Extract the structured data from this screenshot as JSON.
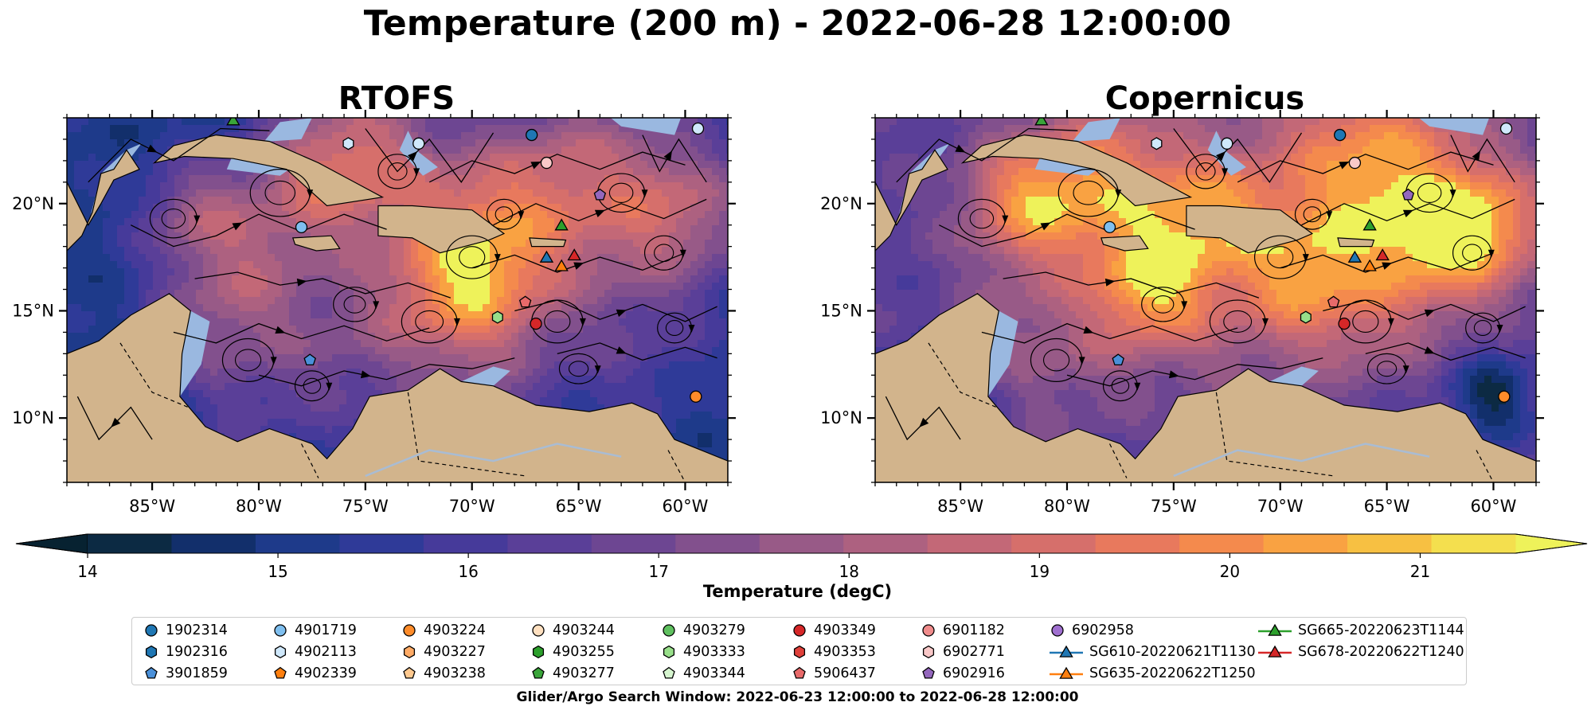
{
  "figure": {
    "suptitle": "Temperature (200 m) - 2022-06-28 12:00:00",
    "search_window": "Glider/Argo Search Window: 2022-06-23 12:00:00 to 2022-06-28 12:00:00"
  },
  "panels": [
    {
      "title": "RTOFS"
    },
    {
      "title": "Copernicus"
    }
  ],
  "map_extent": {
    "lon": [
      -89,
      -58
    ],
    "lat": [
      7,
      24
    ]
  },
  "axes": {
    "lon_ticks": [
      -85,
      -80,
      -75,
      -70,
      -65,
      -60
    ],
    "lon_labels": [
      "85°W",
      "80°W",
      "75°W",
      "70°W",
      "65°W",
      "60°W"
    ],
    "lat_ticks": [
      10,
      15,
      20
    ],
    "lat_labels": [
      "10°N",
      "15°N",
      "20°N"
    ]
  },
  "colorbar": {
    "label": "Temperature (degC)",
    "min": 14,
    "max": 21.5,
    "step": 0.5,
    "ticks": [
      14,
      15,
      16,
      17,
      18,
      19,
      20,
      21
    ],
    "tick_labels": [
      "14",
      "15",
      "16",
      "17",
      "18",
      "19",
      "20",
      "21"
    ],
    "extend": "both",
    "colors": [
      "#0c2a43",
      "#122f6b",
      "#1e3a8a",
      "#2f3a98",
      "#463a9a",
      "#5a3f98",
      "#6d4692",
      "#82508d",
      "#985a87",
      "#ad6180",
      "#c36877",
      "#d66f6b",
      "#e8795d",
      "#f48a4d",
      "#f9a242",
      "#f7c042",
      "#f4df4e"
    ],
    "under_color": "#072231",
    "over_color": "#eef25a"
  },
  "colors": {
    "land": "#d2b48c",
    "shelf": "#9ab8e0",
    "rivers": "#a9bcd3"
  },
  "legend": {
    "columns": [
      [
        {
          "label": "1902314",
          "marker": "circle",
          "color": "#1f77b4"
        },
        {
          "label": "1902316",
          "marker": "hexagon",
          "color": "#1f77b4"
        },
        {
          "label": "3901859",
          "marker": "pentagon",
          "color": "#4a90d9"
        }
      ],
      [
        {
          "label": "4901719",
          "marker": "circle",
          "color": "#7fbfef"
        },
        {
          "label": "4902113",
          "marker": "hexagon",
          "color": "#cfe8fb"
        },
        {
          "label": "4902339",
          "marker": "pentagon",
          "color": "#ff7f0e"
        }
      ],
      [
        {
          "label": "4903224",
          "marker": "circle",
          "color": "#ff8c2a"
        },
        {
          "label": "4903227",
          "marker": "hexagon",
          "color": "#ffab66"
        },
        {
          "label": "4903238",
          "marker": "pentagon",
          "color": "#ffc98f"
        }
      ],
      [
        {
          "label": "4903244",
          "marker": "circle",
          "color": "#ffe0c0"
        },
        {
          "label": "4903255",
          "marker": "hexagon",
          "color": "#2ca02c"
        },
        {
          "label": "4903277",
          "marker": "pentagon",
          "color": "#3aa53a"
        }
      ],
      [
        {
          "label": "4903279",
          "marker": "circle",
          "color": "#5fc05f"
        },
        {
          "label": "4903333",
          "marker": "hexagon",
          "color": "#98df8a"
        },
        {
          "label": "4903344",
          "marker": "pentagon",
          "color": "#d6f5cf"
        }
      ],
      [
        {
          "label": "4903349",
          "marker": "circle",
          "color": "#d62728"
        },
        {
          "label": "4903353",
          "marker": "hexagon",
          "color": "#e0403a"
        },
        {
          "label": "5906437",
          "marker": "pentagon",
          "color": "#e86a6a"
        }
      ],
      [
        {
          "label": "6901182",
          "marker": "circle",
          "color": "#f08c8c"
        },
        {
          "label": "6902771",
          "marker": "hexagon",
          "color": "#f9c8c8"
        },
        {
          "label": "6902916",
          "marker": "pentagon",
          "color": "#9467bd"
        }
      ],
      [
        {
          "label": "6902958",
          "marker": "circle",
          "color": "#a070d0"
        },
        {
          "label": "SG610-20220621T1130",
          "marker": "triangle",
          "color": "#1f77b4"
        },
        {
          "label": "SG635-20220622T1250",
          "marker": "triangle",
          "color": "#ff7f0e"
        }
      ],
      [
        {
          "label": "SG665-20220623T1144",
          "marker": "triangle",
          "color": "#2ca02c"
        },
        {
          "label": "SG678-20220622T1240",
          "marker": "triangle",
          "color": "#d62728"
        }
      ]
    ]
  }
}
